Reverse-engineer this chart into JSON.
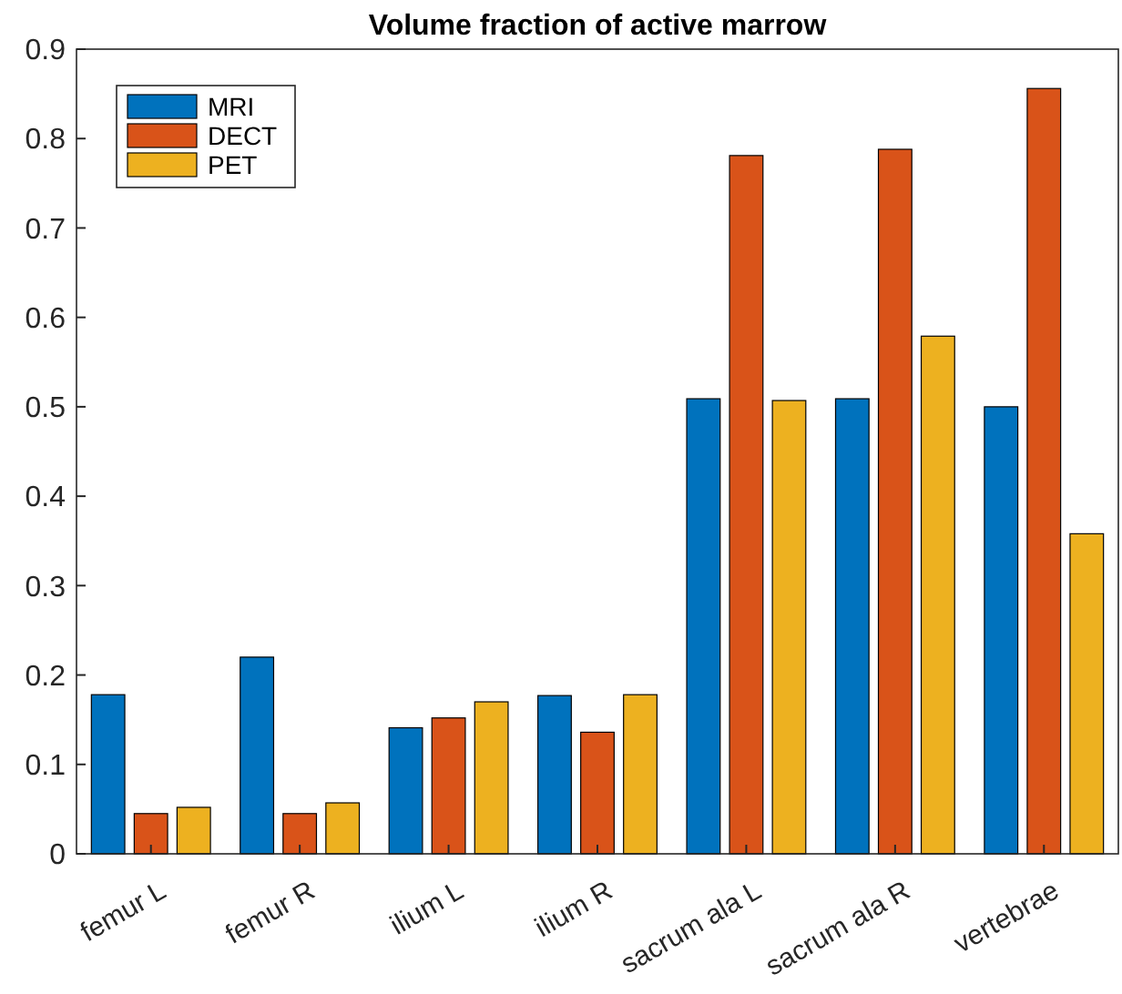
{
  "chart_data": {
    "type": "bar",
    "title": "Volume fraction of active marrow",
    "categories": [
      "femur L",
      "femur R",
      "ilium L",
      "ilium R",
      "sacrum ala L",
      "sacrum ala R",
      "vertebrae"
    ],
    "series": [
      {
        "name": "MRI",
        "color": "#0072bd",
        "values": [
          0.178,
          0.22,
          0.141,
          0.177,
          0.509,
          0.509,
          0.5
        ]
      },
      {
        "name": "DECT",
        "color": "#d95319",
        "values": [
          0.045,
          0.045,
          0.152,
          0.136,
          0.781,
          0.788,
          0.856
        ]
      },
      {
        "name": "PET",
        "color": "#edb120",
        "values": [
          0.052,
          0.057,
          0.17,
          0.178,
          0.507,
          0.579,
          0.358
        ]
      }
    ],
    "ylim": [
      0,
      0.9
    ],
    "yticks": [
      0,
      0.1,
      0.2,
      0.3,
      0.4,
      0.5,
      0.6,
      0.7,
      0.8,
      0.9
    ],
    "grid": false,
    "legend": "top left"
  }
}
